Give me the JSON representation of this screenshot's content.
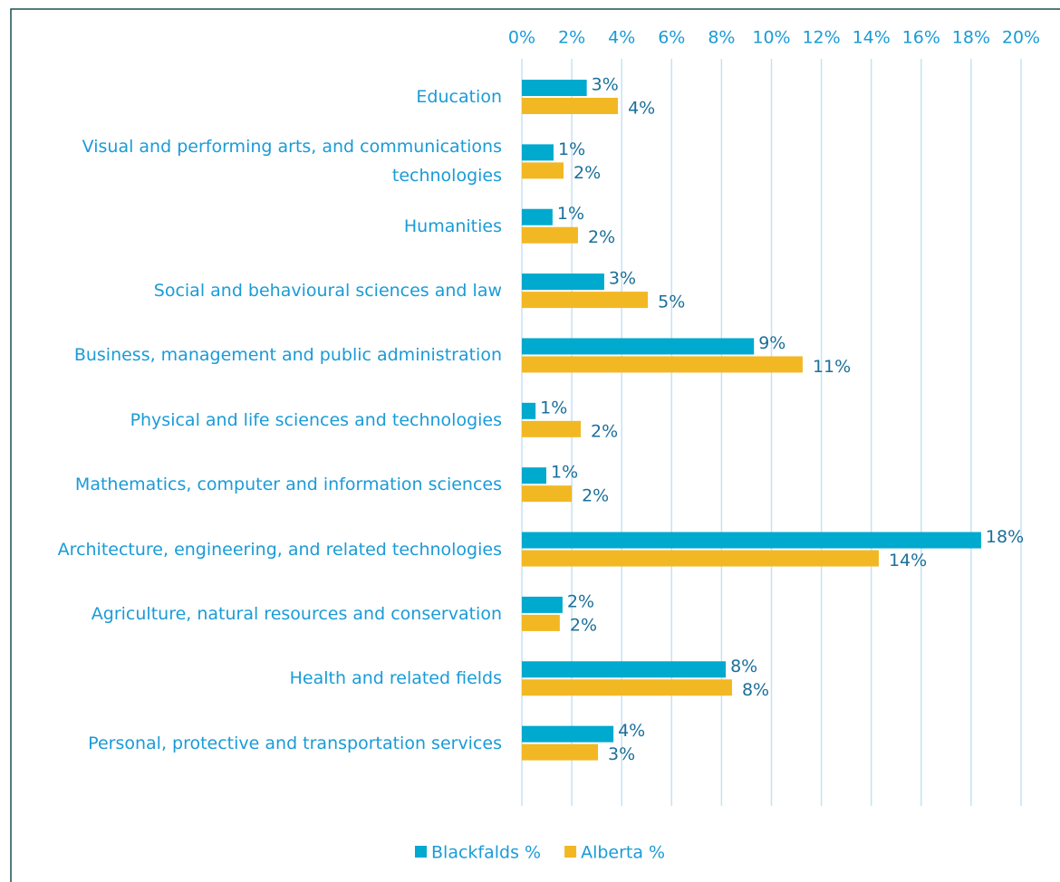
{
  "chart_data": {
    "type": "hbar",
    "categories": [
      "Education",
      "Visual and performing arts, and communications technologies",
      "Humanities",
      "Social and behavioural sciences and law",
      "Business, management and public administration",
      "Physical and life sciences and technologies",
      "Mathematics, computer and information sciences",
      "Architecture, engineering, and related technologies",
      "Agriculture, natural resources and conservation",
      "Health and related fields",
      "Personal, protective and transportation services"
    ],
    "series": [
      {
        "name": "Blackfalds %",
        "color": "#00a9ce",
        "values": [
          2.6,
          1.27,
          1.23,
          3.3,
          9.3,
          0.55,
          0.98,
          18.4,
          1.63,
          8.17,
          3.67
        ],
        "value_labels": [
          "3%",
          "1%",
          "1%",
          "3%",
          "9%",
          "1%",
          "1%",
          "18%",
          "2%",
          "8%",
          "4%"
        ]
      },
      {
        "name": "Alberta %",
        "color": "#f2b824",
        "values": [
          3.85,
          1.67,
          2.25,
          5.05,
          11.25,
          2.36,
          2.0,
          14.3,
          1.52,
          8.42,
          3.05
        ],
        "value_labels": [
          "4%",
          "2%",
          "2%",
          "5%",
          "11%",
          "2%",
          "2%",
          "14%",
          "2%",
          "8%",
          "3%"
        ]
      }
    ],
    "xlim": [
      0,
      20
    ],
    "xticks": [
      {
        "value": 0,
        "label": "0%"
      },
      {
        "value": 2,
        "label": "2%"
      },
      {
        "value": 4,
        "label": "4%"
      },
      {
        "value": 6,
        "label": "6%"
      },
      {
        "value": 8,
        "label": "8%"
      },
      {
        "value": 10,
        "label": "10%"
      },
      {
        "value": 12,
        "label": "12%"
      },
      {
        "value": 14,
        "label": "14%"
      },
      {
        "value": 16,
        "label": "16%"
      },
      {
        "value": 18,
        "label": "18%"
      },
      {
        "value": 20,
        "label": "20%"
      }
    ],
    "grid": true,
    "legend": "bottom"
  }
}
